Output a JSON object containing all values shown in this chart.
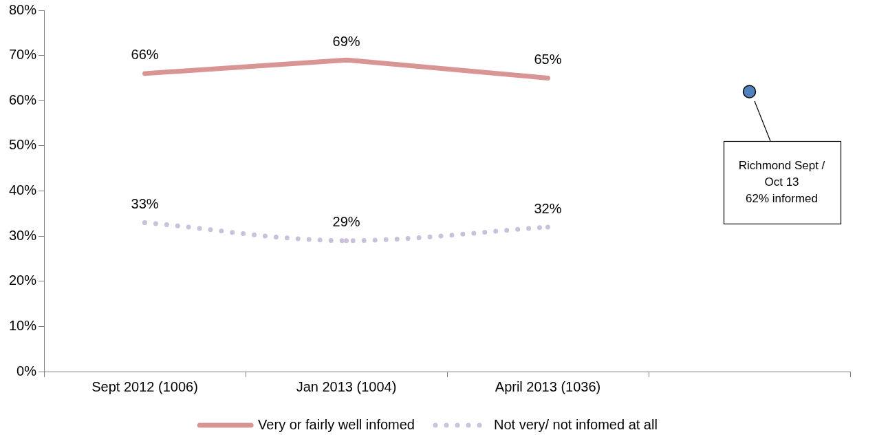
{
  "chart_data": {
    "type": "line",
    "categories": [
      "Sept 2012 (1006)",
      "Jan 2013 (1004)",
      "April 2013 (1036)",
      null
    ],
    "ylim": [
      0,
      80
    ],
    "yticks": [
      {
        "value": 0,
        "label": "0%"
      },
      {
        "value": 10,
        "label": "10%"
      },
      {
        "value": 20,
        "label": "20%"
      },
      {
        "value": 30,
        "label": "30%"
      },
      {
        "value": 40,
        "label": "40%"
      },
      {
        "value": 50,
        "label": "50%"
      },
      {
        "value": 60,
        "label": "60%"
      },
      {
        "value": 70,
        "label": "70%"
      },
      {
        "value": 80,
        "label": "80%"
      }
    ],
    "series": [
      {
        "name": "Very or fairly well infomed",
        "color": "#d99594",
        "values": [
          66,
          69,
          65,
          null
        ],
        "value_labels": [
          "66%",
          "69%",
          "65%",
          null
        ],
        "line_style": "solid"
      },
      {
        "name": "Not very/ not infomed at all",
        "color": "#ccc1da",
        "values": [
          33,
          29,
          32,
          null
        ],
        "value_labels": [
          "33%",
          "29%",
          "32%",
          null
        ],
        "line_style": "dotted",
        "marker": "circle"
      },
      {
        "type": "scatter",
        "color": "#4f81bd",
        "values": [
          null,
          null,
          null,
          62
        ],
        "marker": "circle"
      }
    ],
    "annotations": [
      "Richmond Sept / Oct 13\n62% informed"
    ],
    "grid": false,
    "legend": "bottom"
  }
}
